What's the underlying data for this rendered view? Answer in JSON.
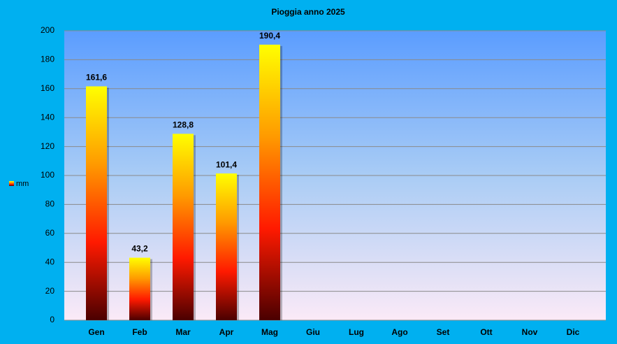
{
  "chart_data": {
    "type": "bar",
    "title": "Pioggia anno 2025",
    "categories": [
      "Gen",
      "Feb",
      "Mar",
      "Apr",
      "Mag",
      "Giu",
      "Lug",
      "Ago",
      "Set",
      "Ott",
      "Nov",
      "Dic"
    ],
    "series": [
      {
        "name": "mm",
        "colors": [
          "#ffff00",
          "#ff9a00",
          "#ff1a00",
          "#4a0000"
        ],
        "values": [
          161.6,
          43.2,
          128.8,
          101.4,
          190.4,
          null,
          null,
          null,
          null,
          null,
          null,
          null
        ],
        "value_labels": [
          "161,6",
          "43,2",
          "128,8",
          "101,4",
          "190,4",
          null,
          null,
          null,
          null,
          null,
          null,
          null
        ]
      }
    ],
    "ylim": [
      0,
      200
    ],
    "yticks": [
      0,
      20,
      40,
      60,
      80,
      100,
      120,
      140,
      160,
      180,
      200
    ],
    "grid": true,
    "legend": "left"
  }
}
